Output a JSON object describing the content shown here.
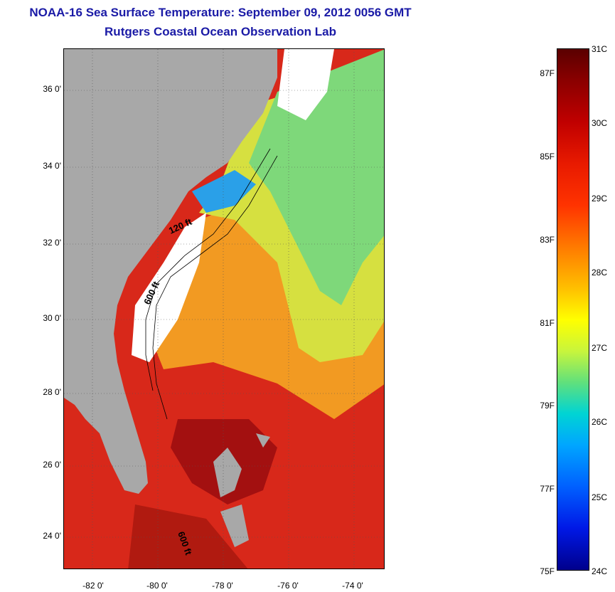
{
  "header": {
    "title": "NOAA-16 Sea Surface Temperature:  September 09, 2012 0056 GMT",
    "subtitle": "Rutgers Coastal Ocean Observation Lab"
  },
  "map": {
    "lat_labels": [
      "36 0'",
      "34 0'",
      "32 0'",
      "30 0'",
      "28 0'",
      "26 0'",
      "24 0'"
    ],
    "lon_labels": [
      "-82 0'",
      "-80 0'",
      "-78 0'",
      "-76 0'",
      "-74 0'"
    ],
    "isobath_labels": [
      "120 ft",
      "600 ft",
      "600 ft"
    ],
    "colors": {
      "land": "#a8a8a8",
      "cloud": "#ffffff",
      "ocean_warm": "#d4200e",
      "ocean_mid": "#f5a623"
    }
  },
  "colorbar": {
    "fahrenheit_labels": [
      "87F",
      "85F",
      "83F",
      "81F",
      "79F",
      "77F",
      "75F"
    ],
    "celsius_labels": [
      "31C",
      "30C",
      "29C",
      "28C",
      "27C",
      "26C",
      "25C",
      "24C"
    ],
    "range_c": [
      24,
      31
    ]
  }
}
